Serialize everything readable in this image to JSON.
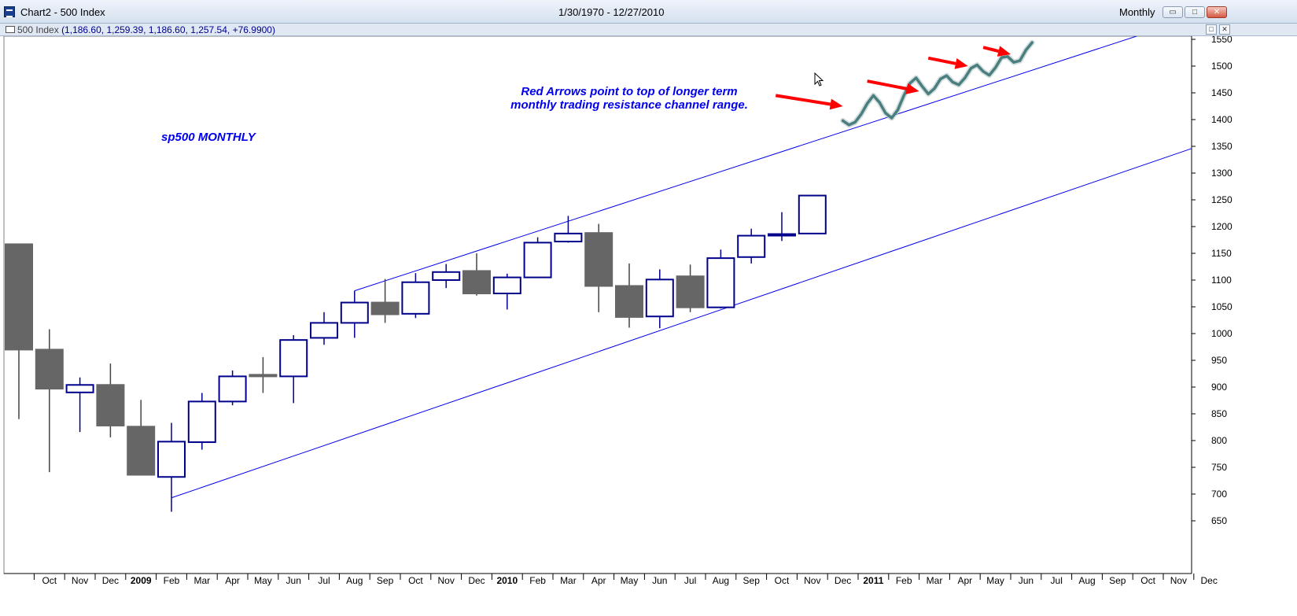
{
  "window": {
    "title": "Chart2 - 500 Index",
    "date_range": "1/30/1970 - 12/27/2010",
    "period": "Monthly",
    "minimize_glyph": "▭",
    "maximize_glyph": "□",
    "close_glyph": "✕"
  },
  "legend_bar": {
    "series_name": "500 Index",
    "values": "(1,186.60, 1,259.39, 1,186.60, 1,257.54, +76.9900)",
    "restore_glyph": "□",
    "close_glyph": "✕"
  },
  "colors": {
    "up_candle_border": "#00008b",
    "down_candle_fill": "#666666",
    "channel_line": "#0000ee",
    "arrow": "#ff0000",
    "projection": "#4a7f80",
    "annotation_text": "#0000ee"
  },
  "chart_data": {
    "type": "candlestick",
    "title": "sp500 MONTHLY",
    "annotation": [
      "Red Arrows point to top of longer term",
      "monthly trading resistance channel range."
    ],
    "ylim": [
      610,
      1610
    ],
    "y_ticks": [
      650,
      700,
      750,
      800,
      850,
      900,
      950,
      1000,
      1050,
      1100,
      1150,
      1200,
      1250,
      1300,
      1350,
      1400,
      1450,
      1500,
      1550
    ],
    "x_labels": [
      "Oct",
      "Nov",
      "Dec",
      "2009",
      "Feb",
      "Mar",
      "Apr",
      "May",
      "Jun",
      "Jul",
      "Aug",
      "Sep",
      "Oct",
      "Nov",
      "Dec",
      "2010",
      "Feb",
      "Mar",
      "Apr",
      "May",
      "Jun",
      "Jul",
      "Aug",
      "Sep",
      "Oct",
      "Nov",
      "Dec",
      "2011",
      "Feb",
      "Mar",
      "Apr",
      "May",
      "Jun",
      "Jul",
      "Aug",
      "Sep",
      "Oct",
      "Nov",
      "Dec"
    ],
    "candles": [
      {
        "month": "Sep 2008",
        "open": 1167,
        "high": 1168,
        "low": 840,
        "close": 970
      },
      {
        "month": "Oct 2008",
        "open": 970,
        "high": 1008,
        "low": 741,
        "close": 897
      },
      {
        "month": "Nov 2008",
        "open": 890,
        "high": 918,
        "low": 816,
        "close": 904
      },
      {
        "month": "Dec 2008",
        "open": 904,
        "high": 944,
        "low": 806,
        "close": 828
      },
      {
        "month": "Jan 2009",
        "open": 826,
        "high": 876,
        "low": 735,
        "close": 736
      },
      {
        "month": "Feb 2009",
        "open": 732,
        "high": 833,
        "low": 667,
        "close": 798
      },
      {
        "month": "Mar 2009",
        "open": 797,
        "high": 889,
        "low": 783,
        "close": 873
      },
      {
        "month": "Apr 2009",
        "open": 873,
        "high": 931,
        "low": 866,
        "close": 920
      },
      {
        "month": "May 2009",
        "open": 923,
        "high": 956,
        "low": 889,
        "close": 920
      },
      {
        "month": "Jun 2009",
        "open": 920,
        "high": 997,
        "low": 870,
        "close": 988
      },
      {
        "month": "Jul 2009",
        "open": 992,
        "high": 1040,
        "low": 979,
        "close": 1020
      },
      {
        "month": "Aug 2009",
        "open": 1020,
        "high": 1080,
        "low": 992,
        "close": 1058
      },
      {
        "month": "Sep 2009",
        "open": 1058,
        "high": 1102,
        "low": 1020,
        "close": 1036
      },
      {
        "month": "Oct 2009",
        "open": 1037,
        "high": 1113,
        "low": 1029,
        "close": 1096
      },
      {
        "month": "Nov 2009",
        "open": 1100,
        "high": 1130,
        "low": 1085,
        "close": 1115
      },
      {
        "month": "Dec 2009",
        "open": 1117,
        "high": 1150,
        "low": 1071,
        "close": 1075
      },
      {
        "month": "Jan 2010",
        "open": 1075,
        "high": 1112,
        "low": 1045,
        "close": 1105
      },
      {
        "month": "Feb 2010",
        "open": 1105,
        "high": 1180,
        "low": 1105,
        "close": 1170
      },
      {
        "month": "Mar 2010",
        "open": 1172,
        "high": 1220,
        "low": 1170,
        "close": 1187
      },
      {
        "month": "Apr 2010",
        "open": 1188,
        "high": 1205,
        "low": 1040,
        "close": 1089
      },
      {
        "month": "May 2010",
        "open": 1089,
        "high": 1131,
        "low": 1011,
        "close": 1031
      },
      {
        "month": "Jun 2010",
        "open": 1032,
        "high": 1120,
        "low": 1010,
        "close": 1101
      },
      {
        "month": "Jul 2010",
        "open": 1107,
        "high": 1129,
        "low": 1040,
        "close": 1049
      },
      {
        "month": "Aug 2010",
        "open": 1049,
        "high": 1157,
        "low": 1047,
        "close": 1141
      },
      {
        "month": "Sep 2010",
        "open": 1143,
        "high": 1196,
        "low": 1131,
        "close": 1183
      },
      {
        "month": "Oct 2010",
        "open": 1186,
        "high": 1227,
        "low": 1173,
        "close": 1186
      },
      {
        "month": "Nov 2010",
        "open": 1187,
        "high": 1259,
        "low": 1187,
        "close": 1258
      }
    ],
    "upper_channel": {
      "from": {
        "month": "Aug 2009",
        "value": 1080
      },
      "to": {
        "month": "Dec 2011",
        "value": 1600
      }
    },
    "lower_channel": {
      "from": {
        "month": "Feb 2009",
        "value": 693
      },
      "to": {
        "month": "Dec 2011",
        "value": 1357
      }
    },
    "projection": [
      {
        "m": 27.0,
        "v": 1398
      },
      {
        "m": 27.2,
        "v": 1390
      },
      {
        "m": 27.4,
        "v": 1395
      },
      {
        "m": 27.6,
        "v": 1410
      },
      {
        "m": 27.8,
        "v": 1430
      },
      {
        "m": 28.0,
        "v": 1445
      },
      {
        "m": 28.2,
        "v": 1432
      },
      {
        "m": 28.4,
        "v": 1412
      },
      {
        "m": 28.6,
        "v": 1403
      },
      {
        "m": 28.8,
        "v": 1418
      },
      {
        "m": 29.0,
        "v": 1445
      },
      {
        "m": 29.2,
        "v": 1468
      },
      {
        "m": 29.4,
        "v": 1478
      },
      {
        "m": 29.6,
        "v": 1462
      },
      {
        "m": 29.8,
        "v": 1448
      },
      {
        "m": 30.0,
        "v": 1458
      },
      {
        "m": 30.2,
        "v": 1476
      },
      {
        "m": 30.4,
        "v": 1482
      },
      {
        "m": 30.6,
        "v": 1470
      },
      {
        "m": 30.8,
        "v": 1465
      },
      {
        "m": 31.0,
        "v": 1478
      },
      {
        "m": 31.2,
        "v": 1496
      },
      {
        "m": 31.4,
        "v": 1502
      },
      {
        "m": 31.6,
        "v": 1490
      },
      {
        "m": 31.8,
        "v": 1483
      },
      {
        "m": 32.0,
        "v": 1497
      },
      {
        "m": 32.2,
        "v": 1516
      },
      {
        "m": 32.4,
        "v": 1518
      },
      {
        "m": 32.6,
        "v": 1507
      },
      {
        "m": 32.8,
        "v": 1510
      },
      {
        "m": 33.0,
        "v": 1530
      },
      {
        "m": 33.2,
        "v": 1544
      }
    ],
    "arrows": [
      {
        "from": {
          "m": 24.8,
          "v": 1445
        },
        "to": {
          "m": 27.0,
          "v": 1425
        }
      },
      {
        "from": {
          "m": 27.8,
          "v": 1472
        },
        "to": {
          "m": 29.5,
          "v": 1453
        }
      },
      {
        "from": {
          "m": 29.8,
          "v": 1515
        },
        "to": {
          "m": 31.1,
          "v": 1500
        }
      },
      {
        "from": {
          "m": 31.6,
          "v": 1535
        },
        "to": {
          "m": 32.5,
          "v": 1522
        }
      }
    ]
  }
}
